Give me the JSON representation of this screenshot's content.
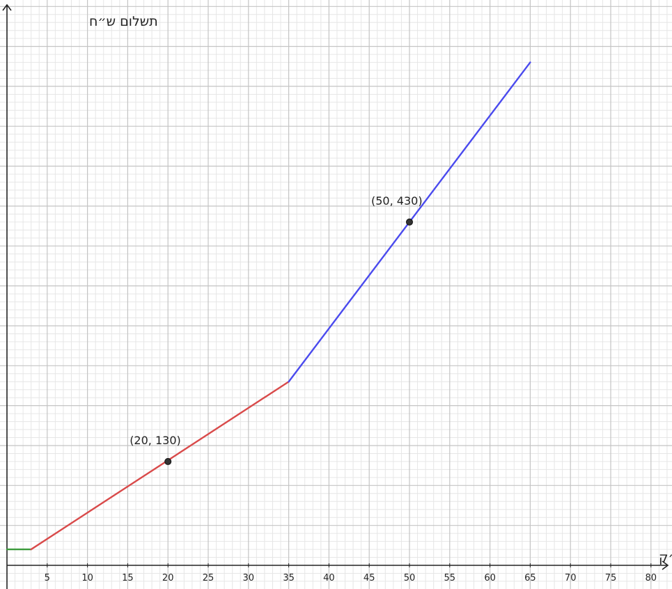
{
  "chart_data": {
    "type": "line",
    "title": "",
    "xlabel": "כמות מים מ״ק",
    "ylabel": "תשלום ש״ח",
    "xlim": [
      0,
      82
    ],
    "ylim": [
      0,
      650
    ],
    "grid": true,
    "x_ticks": [
      "5",
      "10",
      "15",
      "20",
      "25",
      "30",
      "35",
      "40",
      "45",
      "50",
      "55",
      "60",
      "65",
      "70",
      "75",
      "80"
    ],
    "x_tick_values": [
      5,
      10,
      15,
      20,
      25,
      30,
      35,
      40,
      45,
      50,
      55,
      60,
      65,
      70,
      75,
      80
    ],
    "series": [
      {
        "color": "#3a9a3a",
        "x": [
          0,
          3
        ],
        "y": [
          20,
          20
        ]
      },
      {
        "color": "#d94a4a",
        "x": [
          3,
          35
        ],
        "y": [
          20,
          230
        ]
      },
      {
        "color": "#4a4aee",
        "x": [
          35,
          65
        ],
        "y": [
          230,
          630
        ]
      }
    ],
    "points": [
      {
        "x": 20,
        "y": 130,
        "label": "(20, 130)"
      },
      {
        "x": 50,
        "y": 430,
        "label": "(50, 430)"
      }
    ]
  }
}
